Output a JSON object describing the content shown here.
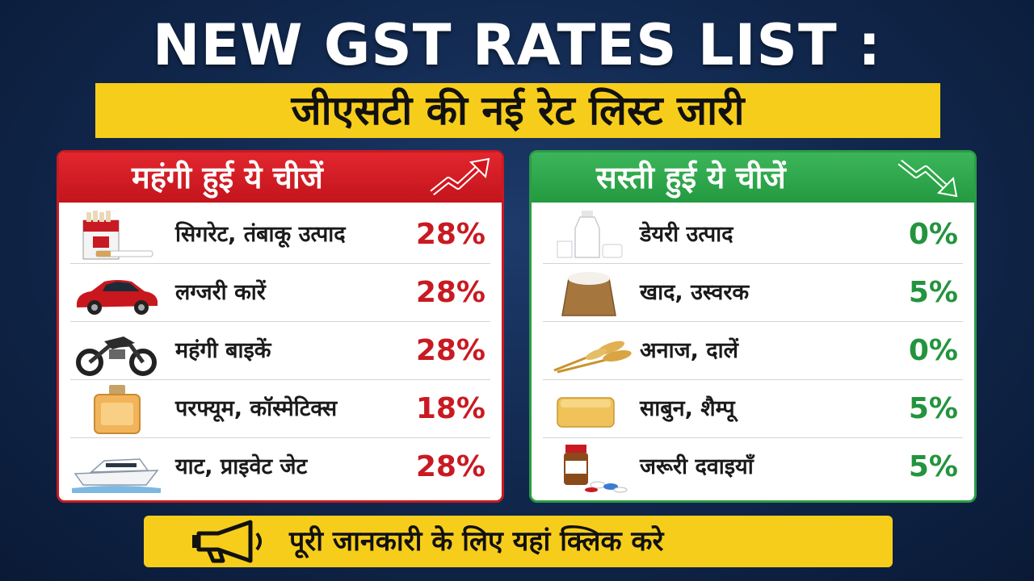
{
  "title": "NEW GST RATES LIST :",
  "subtitle": "जीएसटी की नई रेट लिस्ट जारी",
  "expensive": {
    "heading": "महंगी हुई ये चीजें",
    "accent": "#c81a22",
    "items": [
      {
        "icon": "cigarette-pack-icon",
        "label": "सिगरेट, तंबाकू उत्पाद",
        "rate": "28%"
      },
      {
        "icon": "luxury-car-icon",
        "label": "लग्जरी कारें",
        "rate": "28%"
      },
      {
        "icon": "motorbike-icon",
        "label": "महंगी बाइकें",
        "rate": "28%"
      },
      {
        "icon": "perfume-bottle-icon",
        "label": "परफ्यूम, कॉस्मेटिक्स",
        "rate": "18%"
      },
      {
        "icon": "yacht-icon",
        "label": "याट, प्राइवेट जेट",
        "rate": "28%"
      }
    ]
  },
  "cheaper": {
    "heading": "सस्ती हुई ये चीजें",
    "accent": "#2a9c45",
    "items": [
      {
        "icon": "milk-bottle-icon",
        "label": "डेयरी उत्पाद",
        "rate": "0%"
      },
      {
        "icon": "fertilizer-sack-icon",
        "label": "खाद, उस्वरक",
        "rate": "5%"
      },
      {
        "icon": "wheat-grain-icon",
        "label": "अनाज, दालें",
        "rate": "0%"
      },
      {
        "icon": "soap-bar-icon",
        "label": "साबुन, शैम्पू",
        "rate": "5%"
      },
      {
        "icon": "medicine-bottle-icon",
        "label": "जरूरी दवाइयाँ",
        "rate": "5%"
      }
    ]
  },
  "cta": {
    "icon": "megaphone-icon",
    "label": "पूरी जानकारी के लिए यहां क्लिक करे"
  }
}
